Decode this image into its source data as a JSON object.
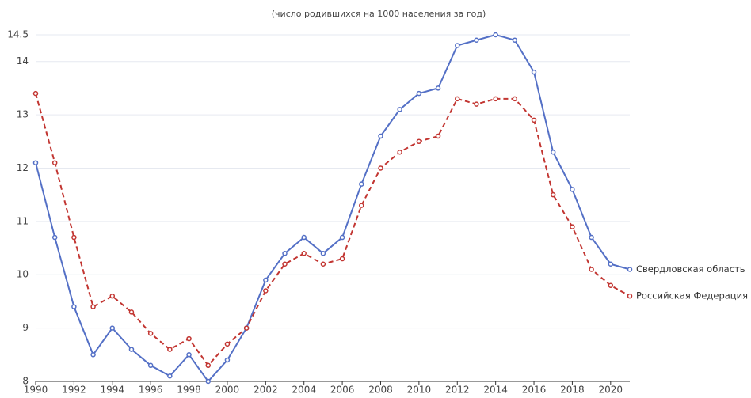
{
  "chart_data": {
    "type": "line",
    "subtitle": "(число родившихся на 1000 населения за год)",
    "x": [
      1990,
      1991,
      1992,
      1993,
      1994,
      1995,
      1996,
      1997,
      1998,
      1999,
      2000,
      2001,
      2002,
      2003,
      2004,
      2005,
      2006,
      2007,
      2008,
      2009,
      2010,
      2011,
      2012,
      2013,
      2014,
      2015,
      2016,
      2017,
      2018,
      2019,
      2020,
      2021
    ],
    "series": [
      {
        "name": "Свердловская область",
        "color": "#5470c6",
        "line_style": "solid",
        "values": [
          12.1,
          10.7,
          9.4,
          8.5,
          9.0,
          8.6,
          8.3,
          8.1,
          8.5,
          8.0,
          8.4,
          9.0,
          9.9,
          10.4,
          10.7,
          10.4,
          10.7,
          11.7,
          12.6,
          13.1,
          13.4,
          13.5,
          14.3,
          14.4,
          14.5,
          14.4,
          13.8,
          12.3,
          11.6,
          10.7,
          10.2,
          10.1
        ]
      },
      {
        "name": "Российская Федерация",
        "color": "#c23531",
        "line_style": "dashed",
        "values": [
          13.4,
          12.1,
          10.7,
          9.4,
          9.6,
          9.3,
          8.9,
          8.6,
          8.8,
          8.3,
          8.7,
          9.0,
          9.7,
          10.2,
          10.4,
          10.2,
          10.3,
          11.3,
          12.0,
          12.3,
          12.5,
          12.6,
          13.3,
          13.2,
          13.3,
          13.3,
          12.9,
          11.5,
          10.9,
          10.1,
          9.8,
          9.6
        ]
      }
    ],
    "xlim": [
      1990,
      2021
    ],
    "xticks": [
      1990,
      1992,
      1994,
      1996,
      1998,
      2000,
      2002,
      2004,
      2006,
      2008,
      2010,
      2012,
      2014,
      2016,
      2018,
      2020
    ],
    "ylim": [
      8,
      14.5
    ],
    "yticks": [
      8,
      9,
      10,
      11,
      12,
      13,
      14,
      14.5
    ],
    "grid": true
  }
}
